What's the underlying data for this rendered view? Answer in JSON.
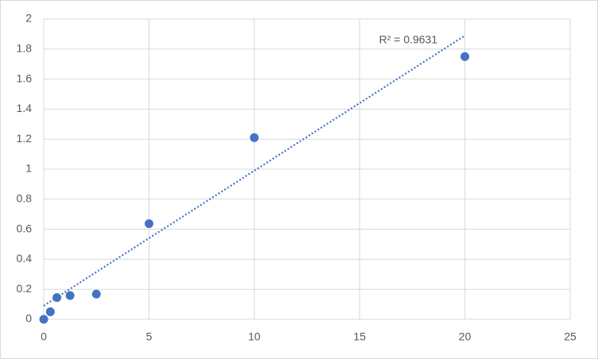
{
  "chart_data": {
    "type": "scatter",
    "series": [
      {
        "color": "#4472c4",
        "x": [
          0,
          0.313,
          0.625,
          1.25,
          2.5,
          5,
          10,
          20
        ],
        "values": [
          0,
          0.05,
          0.145,
          0.158,
          0.168,
          0.637,
          1.21,
          1.75
        ]
      }
    ],
    "trendline": {
      "color": "#4472c4",
      "x": [
        0,
        20
      ],
      "values": [
        0.09,
        1.89
      ],
      "label": "R² = 0.9631"
    },
    "xlim": [
      0,
      25
    ],
    "xticks": [
      0,
      5,
      10,
      15,
      20,
      25
    ],
    "ylim": [
      0,
      2
    ],
    "yticks": [
      0,
      0.2,
      0.4,
      0.6,
      0.8,
      1,
      1.2,
      1.4,
      1.6,
      1.8,
      2
    ],
    "grid": true
  }
}
